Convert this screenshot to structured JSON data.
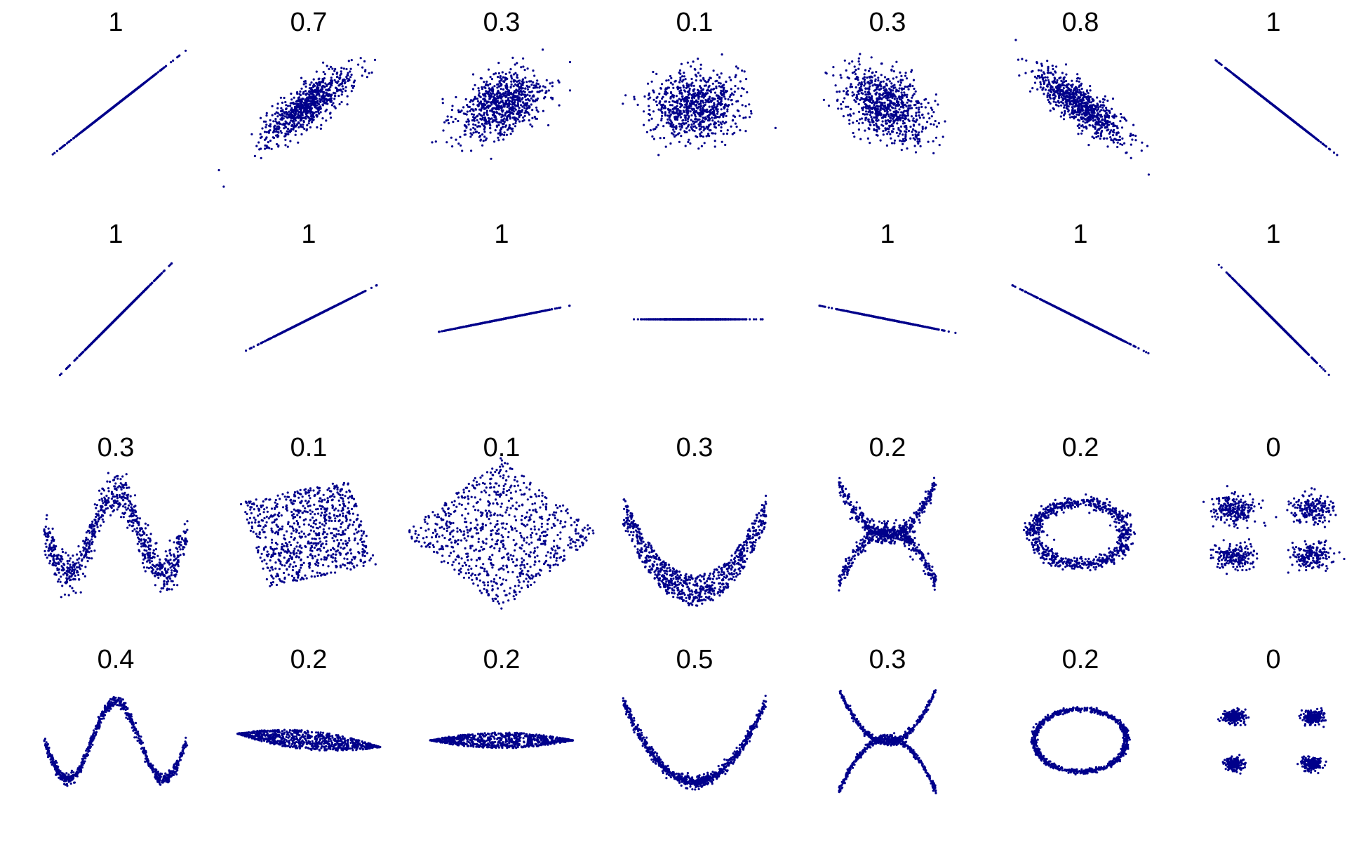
{
  "chart_data": {
    "type": "scatter",
    "point_color": "#00008b",
    "grid": false,
    "axes_visible": false,
    "rows": [
      {
        "kind": "noisy-linear",
        "labels": [
          "1",
          "0.7",
          "0.3",
          "0.1",
          "0.3",
          "0.8",
          "1"
        ],
        "correlations": [
          1,
          0.8,
          0.4,
          0,
          -0.4,
          -0.8,
          -1
        ]
      },
      {
        "kind": "perfect-linear",
        "labels": [
          "1",
          "1",
          "1",
          "",
          "1",
          "1",
          "1"
        ],
        "slopes": [
          1,
          0.5,
          0.2,
          0,
          -0.2,
          -0.5,
          -1
        ]
      },
      {
        "kind": "nonlinear-noisy",
        "labels": [
          "0.3",
          "0.1",
          "0.1",
          "0.3",
          "0.2",
          "0.2",
          "0"
        ],
        "shapes": [
          "sine",
          "rotated-square",
          "diamond",
          "parabola",
          "x-cross",
          "ring",
          "four-clusters"
        ]
      },
      {
        "kind": "nonlinear-tight",
        "labels": [
          "0.4",
          "0.2",
          "0.2",
          "0.5",
          "0.3",
          "0.2",
          "0"
        ],
        "shapes": [
          "sine",
          "lens",
          "lens-flat",
          "parabola",
          "x-cross",
          "ring",
          "four-clusters"
        ]
      }
    ]
  }
}
